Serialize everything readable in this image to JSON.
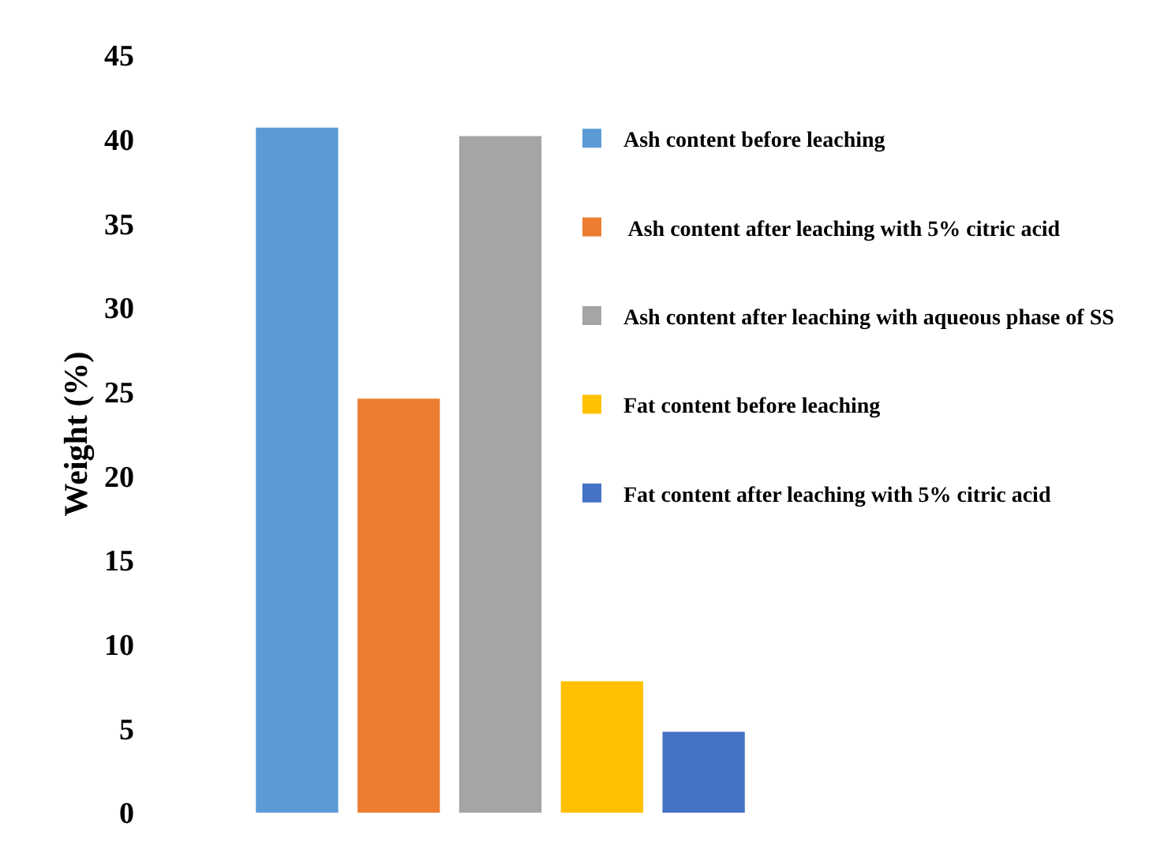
{
  "chart_data": {
    "type": "bar",
    "ylabel": "Weight (%)",
    "categories": [
      null
    ],
    "series": [
      {
        "name": "Ash content before leaching",
        "color": "#5b9bd5",
        "values": [
          40.7
        ]
      },
      {
        "name": " Ash content after leaching with 5% citric acid",
        "color": "#ed7d31",
        "values": [
          24.6
        ]
      },
      {
        "name": "Ash content after leaching with aqueous phase of SS",
        "color": "#a5a5a5",
        "values": [
          40.2
        ]
      },
      {
        "name": "Fat content before leaching",
        "color": "#ffc000",
        "values": [
          7.8
        ]
      },
      {
        "name": "Fat content after leaching with 5% citric acid",
        "color": "#4472c4",
        "values": [
          4.8
        ]
      }
    ],
    "ylim": [
      0,
      45
    ],
    "yticks": [
      0,
      5,
      10,
      15,
      20,
      25,
      30,
      35,
      40,
      45
    ],
    "grid": false,
    "legend": "right"
  }
}
